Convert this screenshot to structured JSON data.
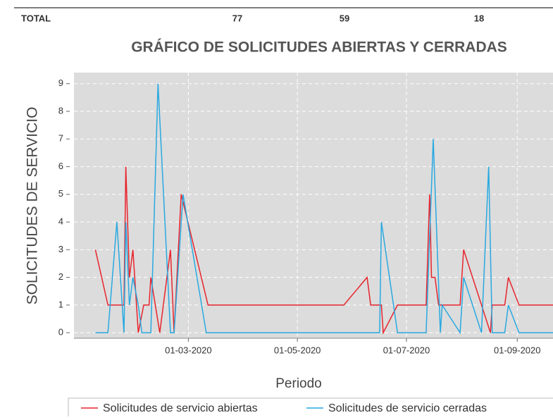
{
  "header": {
    "label": "TOTAL",
    "values": [
      77,
      59,
      18
    ]
  },
  "chart_data": {
    "type": "line",
    "title": "GRÁFICO DE SOLICITUDES ABIERTAS Y CERRADAS",
    "x_label": "Periodo",
    "y_label": "SOLICITUDES DE SERVICIO",
    "xlim": [
      "2019-12-28",
      "2020-09-21"
    ],
    "xticks": [
      {
        "value": "2020-03-01",
        "label": "01-03-2020"
      },
      {
        "value": "2020-05-01",
        "label": "01-05-2020"
      },
      {
        "value": "2020-07-01",
        "label": "01-07-2020"
      },
      {
        "value": "2020-09-01",
        "label": "01-09-2020"
      }
    ],
    "ylim": [
      -0.2,
      9.4
    ],
    "yticks": [
      0,
      1,
      2,
      3,
      4,
      5,
      6,
      7,
      8,
      9
    ],
    "grid": true,
    "legend": "bottom",
    "series": [
      {
        "name": "Solicitudes de servicio abiertas",
        "color": "#e8242c",
        "x": [
          "2020-01-09",
          "2020-01-16",
          "2020-01-25",
          "2020-01-26",
          "2020-01-28",
          "2020-01-30",
          "2020-02-02",
          "2020-02-05",
          "2020-02-08",
          "2020-02-09",
          "2020-02-14",
          "2020-02-20",
          "2020-02-22",
          "2020-02-26",
          "2020-03-12",
          "2020-05-27",
          "2020-06-09",
          "2020-06-11",
          "2020-06-17",
          "2020-06-18",
          "2020-06-26",
          "2020-07-12",
          "2020-07-14",
          "2020-07-15",
          "2020-07-17",
          "2020-07-19",
          "2020-07-31",
          "2020-08-02",
          "2020-08-17",
          "2020-08-18",
          "2020-08-25",
          "2020-08-27",
          "2020-09-02",
          "2020-09-21"
        ],
        "values": [
          3,
          1,
          1,
          6,
          2,
          3,
          0,
          1,
          1,
          2,
          0,
          3,
          0,
          5,
          1,
          1,
          2,
          1,
          1,
          0,
          1,
          1,
          5,
          2,
          2,
          1,
          1,
          3,
          0,
          1,
          1,
          2,
          1,
          1
        ]
      },
      {
        "name": "Solicitudes de servicio cerradas",
        "color": "#29a9e0",
        "x": [
          "2020-01-09",
          "2020-01-16",
          "2020-01-21",
          "2020-01-25",
          "2020-01-26",
          "2020-01-28",
          "2020-01-30",
          "2020-02-02",
          "2020-02-04",
          "2020-02-09",
          "2020-02-13",
          "2020-02-20",
          "2020-02-22",
          "2020-02-27",
          "2020-03-11",
          "2020-06-16",
          "2020-06-17",
          "2020-06-26",
          "2020-07-12",
          "2020-07-16",
          "2020-07-20",
          "2020-07-21",
          "2020-07-31",
          "2020-08-02",
          "2020-08-12",
          "2020-08-16",
          "2020-08-18",
          "2020-08-25",
          "2020-08-27",
          "2020-09-02",
          "2020-09-21"
        ],
        "values": [
          0,
          0,
          4,
          0,
          4,
          1,
          2,
          1,
          0,
          0,
          9,
          0,
          0,
          5,
          0,
          0,
          4,
          0,
          0,
          7,
          0,
          1,
          0,
          2,
          0,
          6,
          0,
          0,
          1,
          0,
          0
        ]
      }
    ]
  }
}
